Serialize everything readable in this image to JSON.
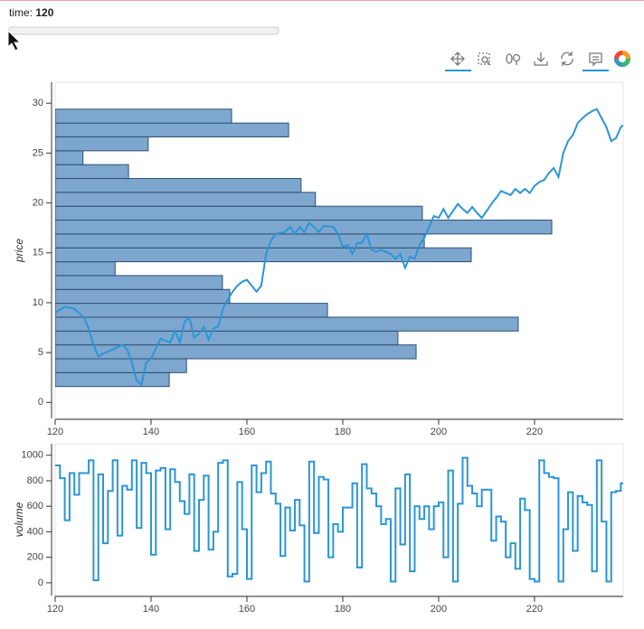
{
  "slider": {
    "label": "time:",
    "value": 120
  },
  "chart_data": [
    {
      "type": "line",
      "ylabel": "price",
      "xlim": [
        120,
        238.5
      ],
      "ylim": [
        -1.6,
        32.1
      ],
      "xticks": [
        120,
        140,
        160,
        180,
        200,
        220
      ],
      "yticks": [
        0,
        5,
        10,
        15,
        20,
        25,
        30
      ],
      "color": "#2b95d6",
      "x": [
        120,
        122,
        124,
        126,
        127,
        128,
        129,
        130,
        132,
        134,
        135,
        136,
        137,
        138,
        139,
        140,
        142,
        144,
        145,
        146,
        147,
        148,
        149,
        150,
        151,
        152,
        153,
        154,
        155,
        156,
        157,
        158,
        159,
        160,
        162,
        163,
        164,
        165,
        166,
        168,
        169,
        170,
        171,
        172,
        173,
        174,
        175,
        176,
        178,
        179,
        180,
        181,
        182,
        183,
        184,
        185,
        186,
        187,
        188,
        190,
        191,
        192,
        193,
        194,
        195,
        196,
        197,
        198,
        199,
        200,
        201,
        202,
        203,
        204,
        205,
        206,
        207,
        208,
        209,
        210,
        211,
        212,
        213,
        214,
        215,
        216,
        217,
        218,
        219,
        220,
        221,
        222,
        223,
        224,
        225,
        226,
        227,
        228,
        229,
        230,
        231,
        232,
        233,
        234,
        235,
        236,
        237,
        238,
        238.5
      ],
      "values": [
        9.0,
        9.6,
        9.4,
        8.5,
        7.4,
        5.8,
        4.6,
        4.9,
        5.3,
        5.8,
        5.3,
        4.0,
        2.2,
        1.8,
        4.0,
        4.4,
        6.4,
        6.0,
        7.2,
        6.0,
        8.1,
        8.5,
        6.5,
        6.9,
        7.6,
        6.3,
        7.4,
        7.6,
        9.4,
        10.3,
        11.1,
        11.7,
        12.1,
        12.3,
        11.1,
        11.7,
        14.9,
        16.2,
        16.9,
        17.1,
        17.6,
        16.9,
        17.6,
        17.1,
        18.0,
        17.6,
        17.1,
        17.7,
        17.6,
        16.9,
        15.6,
        15.8,
        14.9,
        16.0,
        16.0,
        16.9,
        15.3,
        15.1,
        15.3,
        14.9,
        14.4,
        14.9,
        13.5,
        14.6,
        14.4,
        15.8,
        16.5,
        17.6,
        18.7,
        18.5,
        19.4,
        18.5,
        19.2,
        19.9,
        19.4,
        19.0,
        19.6,
        19.0,
        18.5,
        19.2,
        19.9,
        20.5,
        21.2,
        21.0,
        20.8,
        21.4,
        21.0,
        21.4,
        21.0,
        21.7,
        22.1,
        22.3,
        23.0,
        23.5,
        22.6,
        25.0,
        26.2,
        26.8,
        28.0,
        28.5,
        28.9,
        29.2,
        29.4,
        28.5,
        27.6,
        26.2,
        26.5,
        27.6,
        27.8
      ],
      "bars": {
        "orientation": "horizontal",
        "color": "#7ea7cf",
        "edgecolor": "#2f4f6f",
        "bins": [
          1.6,
          2.99,
          4.38,
          5.77,
          7.16,
          8.55,
          9.94,
          11.33,
          12.72,
          14.11,
          15.5,
          16.89,
          18.28,
          19.67,
          21.06,
          22.45,
          23.84,
          25.23,
          26.62,
          28.01,
          29.4
        ],
        "values": [
          143.8,
          147.4,
          195.3,
          191.5,
          216.6,
          176.8,
          156.4,
          154.9,
          132.5,
          206.8,
          197,
          223.6,
          196.6,
          174.3,
          171.3,
          135.3,
          125.8,
          139.4,
          168.7,
          156.8
        ]
      }
    },
    {
      "type": "step",
      "ylabel": "volume",
      "xlim": [
        120,
        238.5
      ],
      "ylim": [
        -100,
        1090
      ],
      "xticks": [
        120,
        140,
        160,
        180,
        200,
        220
      ],
      "yticks": [
        0,
        200,
        400,
        600,
        800,
        1000
      ],
      "color": "#2b95d6",
      "x": [
        120,
        121,
        122,
        123,
        124,
        125,
        126,
        127,
        128,
        129,
        130,
        131,
        132,
        133,
        134,
        135,
        136,
        137,
        138,
        139,
        140,
        141,
        142,
        143,
        144,
        145,
        146,
        147,
        148,
        149,
        150,
        151,
        152,
        153,
        154,
        155,
        156,
        157,
        158,
        159,
        160,
        161,
        162,
        163,
        164,
        165,
        166,
        167,
        168,
        169,
        170,
        171,
        172,
        173,
        174,
        175,
        176,
        177,
        178,
        179,
        180,
        181,
        182,
        183,
        184,
        185,
        186,
        187,
        188,
        189,
        190,
        191,
        192,
        193,
        194,
        195,
        196,
        197,
        198,
        199,
        200,
        201,
        202,
        203,
        204,
        205,
        206,
        207,
        208,
        209,
        210,
        211,
        212,
        213,
        214,
        215,
        216,
        217,
        218,
        219,
        220,
        221,
        222,
        223,
        224,
        225,
        226,
        227,
        228,
        229,
        230,
        231,
        232,
        233,
        234,
        235,
        236,
        237,
        238
      ],
      "values": [
        920,
        820,
        490,
        860,
        690,
        860,
        860,
        960,
        20,
        850,
        310,
        720,
        960,
        370,
        760,
        730,
        960,
        430,
        940,
        860,
        220,
        880,
        900,
        420,
        890,
        790,
        640,
        540,
        850,
        250,
        650,
        840,
        260,
        400,
        940,
        960,
        50,
        70,
        790,
        420,
        30,
        920,
        710,
        860,
        950,
        700,
        620,
        210,
        590,
        410,
        650,
        450,
        10,
        950,
        390,
        830,
        810,
        200,
        460,
        400,
        590,
        590,
        780,
        120,
        930,
        740,
        700,
        600,
        460,
        500,
        10,
        740,
        300,
        850,
        90,
        600,
        500,
        600,
        420,
        600,
        630,
        200,
        880,
        10,
        620,
        980,
        760,
        700,
        600,
        730,
        730,
        330,
        520,
        480,
        200,
        310,
        110,
        660,
        570,
        30,
        10,
        960,
        860,
        830,
        820,
        10,
        420,
        710,
        250,
        680,
        630,
        610,
        90,
        960,
        480,
        10,
        710,
        720,
        780
      ]
    }
  ]
}
